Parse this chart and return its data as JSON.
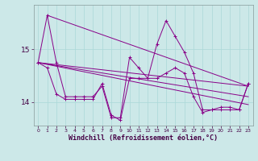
{
  "xlabel": "Windchill (Refroidissement éolien,°C)",
  "bg_color": "#cce8e8",
  "line_color": "#880088",
  "grid_color": "#aad8d8",
  "yticks": [
    14,
    15
  ],
  "xlim": [
    -0.5,
    23.5
  ],
  "ylim": [
    13.55,
    15.85
  ],
  "series_main": {
    "x": [
      0,
      1,
      2,
      3,
      4,
      5,
      6,
      7,
      8,
      9,
      10,
      11,
      12,
      13,
      14,
      15,
      16,
      17,
      18,
      19,
      20,
      21,
      22,
      23
    ],
    "y": [
      14.75,
      15.65,
      14.75,
      14.1,
      14.1,
      14.1,
      14.1,
      14.3,
      13.7,
      13.7,
      14.85,
      14.65,
      14.45,
      15.1,
      15.55,
      15.25,
      14.95,
      14.55,
      13.85,
      13.85,
      13.85,
      13.85,
      13.85,
      14.35
    ]
  },
  "series_lower": {
    "x": [
      0,
      1,
      2,
      3,
      4,
      5,
      6,
      7,
      8,
      9,
      10,
      11,
      12,
      13,
      14,
      15,
      16,
      17,
      18,
      19,
      20,
      21,
      22,
      23
    ],
    "y": [
      14.75,
      14.65,
      14.15,
      14.05,
      14.05,
      14.05,
      14.05,
      14.35,
      13.75,
      13.65,
      14.45,
      14.45,
      14.45,
      14.45,
      14.55,
      14.65,
      14.55,
      14.1,
      13.8,
      13.85,
      13.9,
      13.9,
      13.85,
      14.35
    ]
  },
  "trend_lines": [
    {
      "x": [
        0,
        23
      ],
      "y": [
        14.75,
        14.3
      ]
    },
    {
      "x": [
        0,
        23
      ],
      "y": [
        14.75,
        14.1
      ]
    },
    {
      "x": [
        0,
        23
      ],
      "y": [
        14.75,
        13.95
      ]
    },
    {
      "x": [
        1,
        23
      ],
      "y": [
        15.65,
        14.3
      ]
    }
  ]
}
